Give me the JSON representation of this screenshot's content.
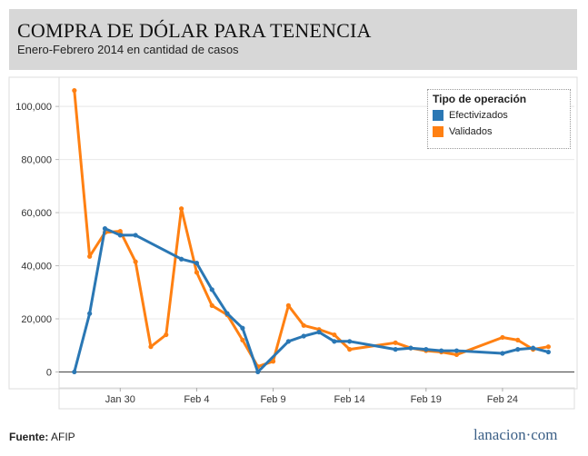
{
  "header": {
    "title": "COMPRA DE DÓLAR PARA TENENCIA",
    "subtitle": "Enero-Febrero 2014 en cantidad de casos"
  },
  "footer": {
    "source_label": "Fuente:",
    "source_value": "AFIP",
    "brand": "lanacion·com"
  },
  "legend": {
    "title": "Tipo de operación",
    "items": [
      {
        "label": "Efectivizados",
        "color": "#2a77b4"
      },
      {
        "label": "Validados",
        "color": "#ff8012"
      }
    ]
  },
  "chart_data": {
    "type": "line",
    "title": "COMPRA DE DÓLAR PARA TENENCIA",
    "subtitle": "Enero-Febrero 2014 en cantidad de casos",
    "xlabel": "",
    "ylabel": "",
    "x_day_range": [
      -4,
      29.7
    ],
    "ylim": [
      -6000,
      111000
    ],
    "y_ticks": [
      0,
      20000,
      40000,
      60000,
      80000,
      100000
    ],
    "y_tick_labels": [
      "0",
      "20,000",
      "40,000",
      "60,000",
      "80,000",
      "100,000"
    ],
    "x_ticks": [
      {
        "day": 0,
        "label": "Jan 30"
      },
      {
        "day": 5,
        "label": "Feb 4"
      },
      {
        "day": 10,
        "label": "Feb 9"
      },
      {
        "day": 15,
        "label": "Feb 14"
      },
      {
        "day": 20,
        "label": "Feb 19"
      },
      {
        "day": 25,
        "label": "Feb 24"
      }
    ],
    "series": [
      {
        "name": "Efectivizados",
        "color": "#2a77b4",
        "points": [
          {
            "day": -3,
            "value": 0
          },
          {
            "day": -2,
            "value": 22000
          },
          {
            "day": -1,
            "value": 54000
          },
          {
            "day": 0,
            "value": 51500
          },
          {
            "day": 1,
            "value": 51500
          },
          {
            "day": 4,
            "value": 42500
          },
          {
            "day": 5,
            "value": 41000
          },
          {
            "day": 6,
            "value": 31000
          },
          {
            "day": 7,
            "value": 22000
          },
          {
            "day": 8,
            "value": 16500
          },
          {
            "day": 9,
            "value": 0
          },
          {
            "day": 11,
            "value": 11500
          },
          {
            "day": 12,
            "value": 13500
          },
          {
            "day": 13,
            "value": 15000
          },
          {
            "day": 14,
            "value": 11500
          },
          {
            "day": 15,
            "value": 11500
          },
          {
            "day": 18,
            "value": 8500
          },
          {
            "day": 19,
            "value": 9000
          },
          {
            "day": 20,
            "value": 8500
          },
          {
            "day": 21,
            "value": 8000
          },
          {
            "day": 22,
            "value": 8000
          },
          {
            "day": 25,
            "value": 7000
          },
          {
            "day": 26,
            "value": 8500
          },
          {
            "day": 27,
            "value": 9000
          },
          {
            "day": 28,
            "value": 7500
          }
        ]
      },
      {
        "name": "Validados",
        "color": "#ff8012",
        "points": [
          {
            "day": -3,
            "value": 106000
          },
          {
            "day": -2,
            "value": 43500
          },
          {
            "day": -1,
            "value": 52500
          },
          {
            "day": 0,
            "value": 53000
          },
          {
            "day": 1,
            "value": 41500
          },
          {
            "day": 2,
            "value": 9500
          },
          {
            "day": 3,
            "value": 14000
          },
          {
            "day": 4,
            "value": 61500
          },
          {
            "day": 5,
            "value": 37500
          },
          {
            "day": 6,
            "value": 25000
          },
          {
            "day": 7,
            "value": 21500
          },
          {
            "day": 8,
            "value": 12000
          },
          {
            "day": 9,
            "value": 2000
          },
          {
            "day": 10,
            "value": 4000
          },
          {
            "day": 11,
            "value": 25000
          },
          {
            "day": 12,
            "value": 17500
          },
          {
            "day": 13,
            "value": 16000
          },
          {
            "day": 14,
            "value": 14000
          },
          {
            "day": 15,
            "value": 8500
          },
          {
            "day": 18,
            "value": 11000
          },
          {
            "day": 19,
            "value": 9000
          },
          {
            "day": 20,
            "value": 8000
          },
          {
            "day": 21,
            "value": 7500
          },
          {
            "day": 22,
            "value": 6500
          },
          {
            "day": 25,
            "value": 13000
          },
          {
            "day": 26,
            "value": 12000
          },
          {
            "day": 27,
            "value": 8500
          },
          {
            "day": 28,
            "value": 9500
          }
        ]
      }
    ]
  }
}
